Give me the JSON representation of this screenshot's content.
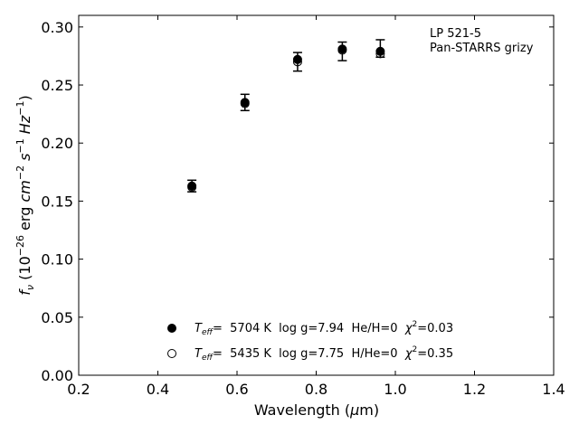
{
  "chart_data": {
    "type": "scatter",
    "xlabel_main": "Wavelength (",
    "xlabel_unit_mu": "μ",
    "xlabel_unit_rest": "m)",
    "ylabel": {
      "f": "f",
      "nu": "ν",
      "open": " (10",
      "exp1": "−26",
      "erg": " erg ",
      "cm": "cm",
      "exp2": "−2",
      "s": " s",
      "exp3": "−1",
      "hz": " Hz",
      "exp4": "−1",
      "close": ")"
    },
    "xlim": [
      0.2,
      1.4
    ],
    "ylim": [
      0.0,
      0.31
    ],
    "xticks": [
      "0.2",
      "0.4",
      "0.6",
      "0.8",
      "1.0",
      "1.2",
      "1.4"
    ],
    "xtick_values": [
      0.2,
      0.4,
      0.6,
      0.8,
      1.0,
      1.2,
      1.4
    ],
    "yticks": [
      "0.00",
      "0.05",
      "0.10",
      "0.15",
      "0.20",
      "0.25",
      "0.30"
    ],
    "ytick_values": [
      0.0,
      0.05,
      0.1,
      0.15,
      0.2,
      0.25,
      0.3
    ],
    "annotation_lines": [
      "LP 521-5",
      "Pan-STARRS grizy"
    ],
    "observed": {
      "x": [
        0.486,
        0.62,
        0.753,
        0.866,
        0.962
      ],
      "y": [
        0.163,
        0.235,
        0.27,
        0.279,
        0.281
      ],
      "yerr_low": [
        0.158,
        0.228,
        0.262,
        0.271,
        0.274
      ],
      "yerr_high": [
        0.168,
        0.242,
        0.278,
        0.287,
        0.289
      ]
    },
    "series": [
      {
        "marker": "filled",
        "x": [
          0.486,
          0.62,
          0.753,
          0.866,
          0.962
        ],
        "y": [
          0.163,
          0.235,
          0.272,
          0.281,
          0.279
        ],
        "label_teff_T": "T",
        "label_teff_sub": "eff",
        "label_rest": "=  5704 K  log g=7.94  He/H=0  ",
        "label_chi": "χ",
        "label_chi_sup": "2",
        "label_chi_val": "=0.03"
      },
      {
        "marker": "open",
        "x": [
          0.486,
          0.62,
          0.753,
          0.866,
          0.962
        ],
        "y": [
          0.162,
          0.234,
          0.27,
          0.28,
          0.277
        ],
        "label_teff_T": "T",
        "label_teff_sub": "eff",
        "label_rest": "=  5435 K  log g=7.75  H/He=0  ",
        "label_chi": "χ",
        "label_chi_sup": "2",
        "label_chi_val": "=0.35"
      }
    ],
    "legend_position": "lower-center",
    "grid": false
  }
}
